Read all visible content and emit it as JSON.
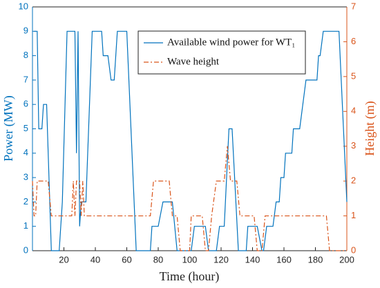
{
  "chart_data": {
    "type": "line",
    "xlabel": "Time (hour)",
    "ylabel": "Power (MW)",
    "y2label": "Height (m)",
    "xlim": [
      0,
      200
    ],
    "xticks": [
      20,
      40,
      60,
      80,
      100,
      120,
      140,
      160,
      180,
      200
    ],
    "ylim": [
      0,
      10
    ],
    "yticks": [
      0,
      1,
      2,
      3,
      4,
      5,
      6,
      7,
      8,
      9,
      10
    ],
    "y2lim": [
      0,
      7
    ],
    "y2ticks": [
      0,
      1,
      2,
      3,
      4,
      5,
      6,
      7
    ],
    "legend": "top-right",
    "series": [
      {
        "name": "Available wind power for WT₁",
        "color": "#0072bd",
        "linestyle": "solid",
        "x": [
          1,
          3,
          4,
          6,
          7,
          9,
          12,
          17,
          19,
          22,
          27,
          28,
          29,
          30,
          31,
          32,
          34,
          38,
          44,
          45,
          48,
          50,
          52,
          54,
          60,
          62,
          66,
          75,
          76,
          80,
          83,
          89,
          92,
          101,
          103,
          110,
          112,
          117,
          119,
          122,
          125,
          127,
          131,
          136,
          137,
          143,
          146,
          147,
          149,
          153,
          155,
          157,
          158,
          160,
          161,
          165,
          166,
          170,
          172,
          174,
          181,
          182,
          183,
          185,
          195,
          200
        ],
        "values": [
          9,
          9,
          5,
          5,
          6,
          6,
          0,
          0,
          2,
          9,
          9,
          4,
          9,
          1,
          2,
          2,
          2,
          9,
          9,
          8,
          8,
          7,
          7,
          9,
          9,
          6,
          0,
          0,
          1,
          1,
          2,
          2,
          0,
          0,
          1,
          1,
          0,
          0,
          1,
          1,
          5,
          5,
          0,
          0,
          1,
          1,
          0,
          0,
          1,
          1,
          2,
          2,
          3,
          3,
          4,
          4,
          5,
          5,
          6,
          7,
          7,
          8,
          8,
          9,
          9,
          2
        ]
      },
      {
        "name": "Wave height",
        "color": "#d95319",
        "linestyle": "dashdot",
        "axis": "y2",
        "x": [
          0,
          1,
          2,
          3,
          10,
          12,
          25,
          26,
          27,
          28,
          30,
          31,
          32,
          33,
          35,
          75,
          77,
          87,
          89,
          92,
          94,
          100,
          101,
          108,
          110,
          112,
          114,
          117,
          122,
          124,
          126,
          130,
          132,
          141,
          143,
          146,
          148,
          187,
          189,
          200
        ],
        "values": [
          2,
          1,
          1,
          2,
          2,
          1,
          1,
          2,
          1,
          2,
          2,
          1,
          2,
          1,
          1,
          1,
          2,
          2,
          1,
          1,
          0,
          0,
          1,
          1,
          0,
          0,
          1,
          2,
          2,
          3,
          2,
          2,
          1,
          1,
          0,
          0,
          1,
          1,
          0,
          0
        ]
      }
    ]
  }
}
